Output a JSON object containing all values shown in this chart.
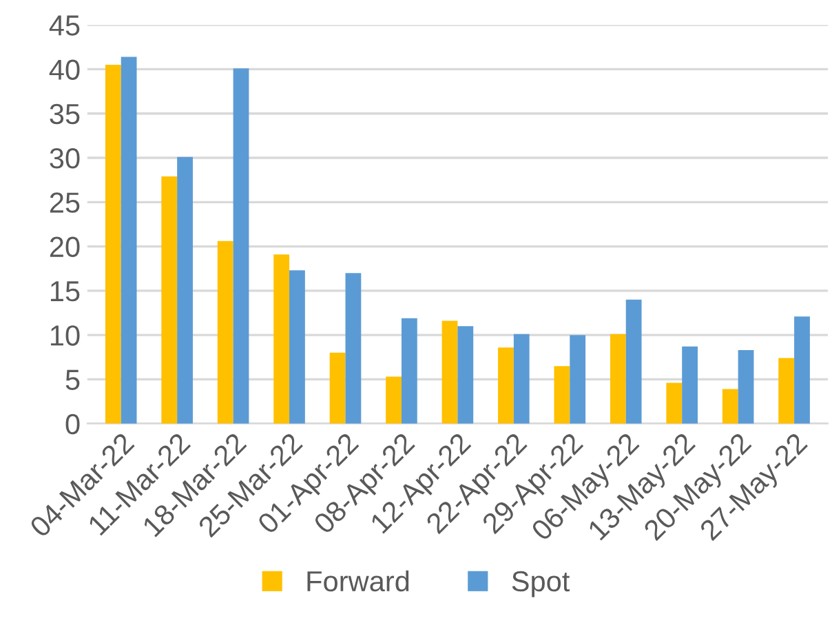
{
  "chart_data": {
    "type": "bar",
    "categories": [
      "04-Mar-22",
      "11-Mar-22",
      "18-Mar-22",
      "25-Mar-22",
      "01-Apr-22",
      "08-Apr-22",
      "12-Apr-22",
      "22-Apr-22",
      "29-Apr-22",
      "06-May-22",
      "13-May-22",
      "20-May-22",
      "27-May-22"
    ],
    "series": [
      {
        "name": "Forward",
        "color": "#ffc000",
        "values": [
          40.5,
          27.9,
          20.6,
          19.1,
          8.0,
          5.3,
          11.6,
          8.6,
          6.5,
          10.1,
          4.6,
          3.9,
          7.4
        ]
      },
      {
        "name": "Spot",
        "color": "#5b9bd5",
        "values": [
          41.4,
          30.1,
          40.1,
          17.3,
          17.0,
          11.9,
          11.0,
          10.1,
          10.0,
          14.0,
          8.7,
          8.3,
          12.1
        ]
      }
    ],
    "ylim": [
      0,
      45
    ],
    "yticks": [
      0,
      5,
      10,
      15,
      20,
      25,
      30,
      35,
      40,
      45
    ],
    "grid": "y",
    "legend": "bottom"
  }
}
